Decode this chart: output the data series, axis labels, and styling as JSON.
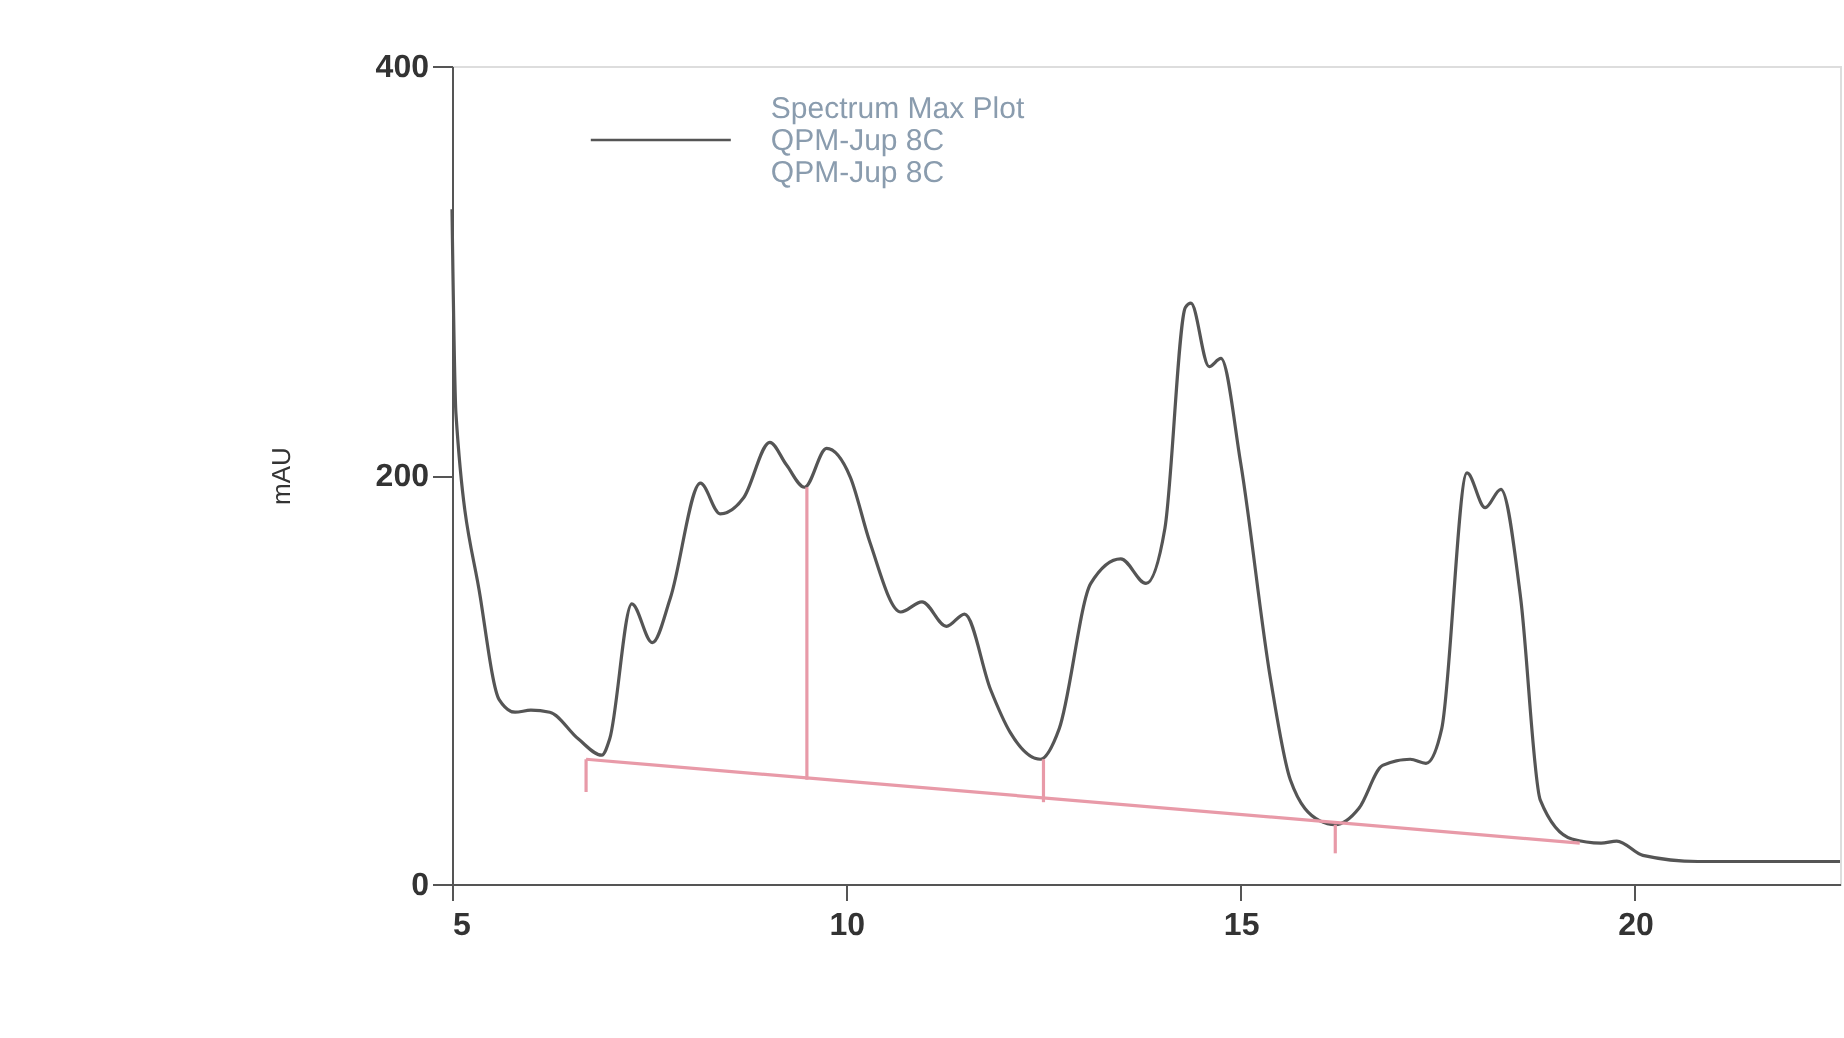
{
  "chart_data": {
    "type": "line",
    "ylabel": "mAU",
    "legend_title": "Spectrum Max Plot",
    "legend": "top",
    "xlim": [
      5,
      22.6
    ],
    "ylim": [
      0,
      400
    ],
    "xticks": [
      5,
      10,
      15,
      20
    ],
    "yticks": [
      0,
      200,
      400
    ],
    "grid": false,
    "annotations": [
      "QPM-Jup 8C"
    ],
    "x": [
      5.0,
      5.05,
      5.36,
      5.6,
      5.8,
      6.0,
      6.24,
      6.6,
      6.9,
      7.0,
      7.28,
      7.54,
      7.77,
      8.15,
      8.4,
      8.7,
      9.03,
      9.24,
      9.47,
      9.75,
      10.05,
      10.3,
      10.69,
      10.96,
      11.27,
      11.5,
      11.83,
      12.08,
      12.46,
      12.7,
      13.1,
      13.48,
      13.8,
      14.04,
      14.3,
      14.37,
      14.6,
      14.75,
      15.0,
      15.38,
      15.63,
      16.0,
      16.2,
      16.5,
      16.8,
      17.15,
      17.35,
      17.55,
      17.87,
      18.1,
      18.3,
      18.55,
      18.8,
      19.2,
      19.57,
      19.77,
      20.1,
      20.8,
      22.6
    ],
    "series": [
      {
        "name": "QPM-Jup 8C",
        "color": "#555555",
        "values": [
          330,
          230,
          140,
          90,
          84,
          85,
          84,
          71,
          63,
          71,
          137,
          118,
          140,
          196,
          181,
          189,
          216,
          205,
          194,
          213,
          199,
          167,
          133,
          138,
          126,
          132,
          95,
          74,
          61,
          76,
          147,
          159,
          147,
          174,
          282,
          284,
          253,
          257,
          206,
          100,
          51,
          31,
          29,
          37,
          58,
          61,
          59,
          76,
          201,
          184,
          193,
          140,
          41,
          22,
          20,
          21,
          14,
          11,
          11
        ]
      },
      {
        "type": "line",
        "color": "#e89aa8",
        "x": [
          6.7,
          19.3
        ],
        "values": [
          61,
          20
        ]
      },
      {
        "type": "line",
        "color": "#e89aa8",
        "x": [
          6.7,
          6.7
        ],
        "values": [
          45,
          61
        ]
      },
      {
        "type": "line",
        "color": "#e89aa8",
        "x": [
          9.5,
          9.5
        ],
        "values": [
          51,
          194
        ]
      },
      {
        "type": "line",
        "color": "#e89aa8",
        "x": [
          12.5,
          12.5
        ],
        "values": [
          40,
          61
        ]
      },
      {
        "type": "line",
        "color": "#e89aa8",
        "x": [
          16.2,
          16.2
        ],
        "values": [
          15,
          29
        ]
      }
    ]
  }
}
